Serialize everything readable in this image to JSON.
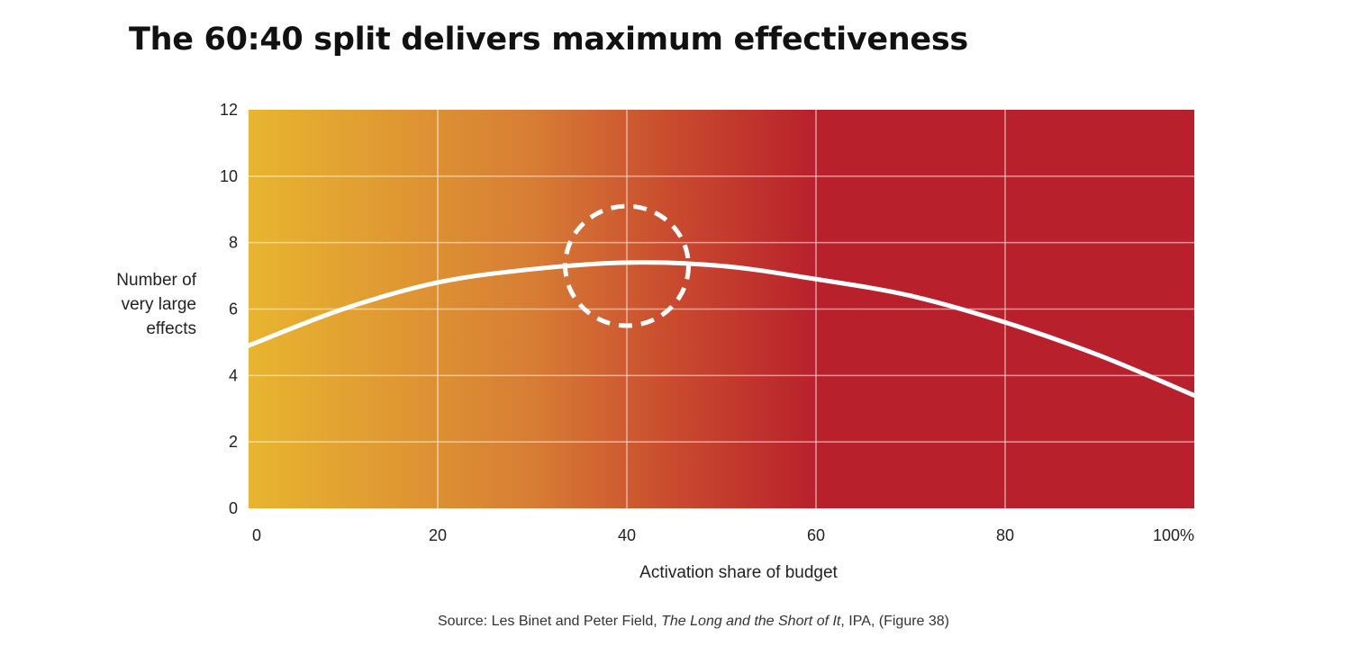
{
  "title": "The 60:40 split delivers maximum effectiveness",
  "chart_data": {
    "type": "line",
    "title": "The 60:40 split delivers maximum effectiveness",
    "xlabel": "Activation share of budget",
    "ylabel": [
      "Number of",
      "very large",
      "effects"
    ],
    "xlim": [
      0,
      100
    ],
    "ylim": [
      0,
      12
    ],
    "x_ticks": [
      "0",
      "20",
      "40",
      "60",
      "80",
      "100%"
    ],
    "x_tick_values": [
      0,
      20,
      40,
      60,
      80,
      100
    ],
    "y_ticks": [
      "0",
      "2",
      "4",
      "6",
      "8",
      "10",
      "12"
    ],
    "y_tick_values": [
      0,
      2,
      4,
      6,
      8,
      10,
      12
    ],
    "grid": true,
    "background_gradient": [
      "#e8b52f",
      "#d77d35",
      "#c94a2e",
      "#b8212c"
    ],
    "line_color": "#ffffff",
    "series": [
      {
        "x": [
          0,
          10,
          20,
          30,
          40,
          50,
          60,
          70,
          80,
          90,
          100
        ],
        "values": [
          4.9,
          6.0,
          6.8,
          7.2,
          7.4,
          7.3,
          6.9,
          6.4,
          5.6,
          4.6,
          3.4
        ]
      }
    ],
    "annotation": {
      "type": "dashed-circle",
      "x": 40,
      "y": 7.3,
      "radius_y": 1.8
    }
  },
  "source": {
    "prefix": "Source: Les Binet and Peter Field, ",
    "work": "The Long and the Short of It",
    "suffix": ", IPA, (Figure 38)"
  }
}
